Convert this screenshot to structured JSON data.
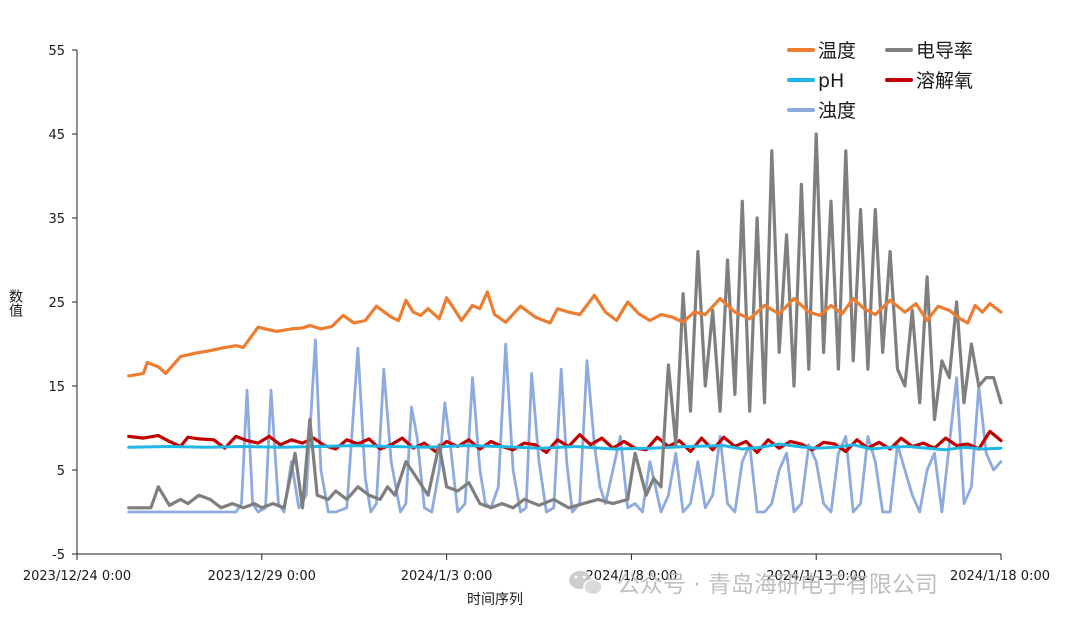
{
  "chart_data": {
    "type": "line",
    "title": "",
    "xlabel": "时间序列",
    "ylabel": "数值",
    "ylim": [
      -5,
      55
    ],
    "yticks": [
      -5,
      5,
      15,
      25,
      35,
      45,
      55
    ],
    "xlim": [
      0,
      25
    ],
    "xtick_labels": [
      "2023/12/24 0:00",
      "2023/12/29 0:00",
      "2024/1/3 0:00",
      "2024/1/8 0:00",
      "2024/1/13 0:00",
      "2024/1/18 0:00"
    ],
    "xtick_days": [
      0,
      5,
      10,
      15,
      20,
      25
    ],
    "x_unit": "days since 2023/12/24 0:00",
    "legend_position": "top-right",
    "series": [
      {
        "name": "温度",
        "color": "#ED7D31",
        "x": [
          1.4,
          1.8,
          1.9,
          2.2,
          2.4,
          2.8,
          3.2,
          3.6,
          3.9,
          4.3,
          4.5,
          4.9,
          5.1,
          5.4,
          5.8,
          6.1,
          6.3,
          6.6,
          6.9,
          7.2,
          7.5,
          7.8,
          8.1,
          8.5,
          8.7,
          8.9,
          9.1,
          9.3,
          9.5,
          9.8,
          10.0,
          10.2,
          10.4,
          10.7,
          10.9,
          11.1,
          11.3,
          11.6,
          12.0,
          12.4,
          12.8,
          13.0,
          13.3,
          13.6,
          14.0,
          14.3,
          14.6,
          14.9,
          15.2,
          15.5,
          15.8,
          16.1,
          16.4,
          16.7,
          17.0,
          17.4,
          17.8,
          18.2,
          18.6,
          19.0,
          19.4,
          19.8,
          20.1,
          20.4,
          20.7,
          21.0,
          21.3,
          21.6,
          22.0,
          22.4,
          22.7,
          23.0,
          23.3,
          23.6,
          23.9,
          24.1,
          24.3,
          24.5,
          24.7,
          25.0
        ],
        "values": [
          16.2,
          16.5,
          17.8,
          17.3,
          16.5,
          18.5,
          18.9,
          19.2,
          19.5,
          19.8,
          19.6,
          22.0,
          21.8,
          21.5,
          21.8,
          21.9,
          22.2,
          21.8,
          22.1,
          23.4,
          22.5,
          22.8,
          24.5,
          23.2,
          22.8,
          25.2,
          23.8,
          23.4,
          24.2,
          23.0,
          25.5,
          24.2,
          22.8,
          24.6,
          24.2,
          26.2,
          23.5,
          22.6,
          24.5,
          23.2,
          22.5,
          24.2,
          23.8,
          23.5,
          25.8,
          23.8,
          22.8,
          25.0,
          23.6,
          22.8,
          23.5,
          23.2,
          22.6,
          23.8,
          23.5,
          25.4,
          23.8,
          23.0,
          24.6,
          23.6,
          25.4,
          23.8,
          23.4,
          24.6,
          23.6,
          25.4,
          24.2,
          23.5,
          25.2,
          23.8,
          24.8,
          22.8,
          24.5,
          24.0,
          23.0,
          22.5,
          24.6,
          23.8,
          24.8,
          23.8
        ]
      },
      {
        "name": "pH",
        "color": "#1FB8E6",
        "x": [
          1.4,
          2.5,
          3.5,
          4.5,
          5.5,
          6.5,
          7.5,
          8.5,
          9.5,
          10.5,
          11.5,
          12.5,
          13.5,
          14.5,
          15.5,
          16.5,
          17.5,
          18.0,
          18.5,
          19.0,
          19.5,
          20.0,
          20.5,
          21.0,
          21.5,
          22.0,
          22.5,
          23.0,
          23.5,
          24.0,
          24.5,
          25.0
        ],
        "values": [
          7.7,
          7.8,
          7.7,
          7.8,
          7.7,
          7.8,
          7.9,
          7.8,
          7.7,
          7.9,
          7.8,
          7.6,
          7.8,
          7.5,
          7.6,
          7.8,
          7.9,
          7.5,
          7.7,
          8.1,
          7.8,
          7.6,
          7.7,
          8.0,
          7.5,
          7.7,
          7.8,
          7.6,
          7.4,
          7.7,
          7.5,
          7.6
        ]
      },
      {
        "name": "浊度",
        "color": "#8FAADC",
        "x": [
          1.4,
          4.3,
          4.45,
          4.6,
          4.75,
          4.9,
          5.1,
          5.25,
          5.45,
          5.6,
          5.8,
          6.0,
          6.2,
          6.45,
          6.6,
          6.8,
          7.0,
          7.3,
          7.6,
          7.8,
          7.95,
          8.1,
          8.3,
          8.5,
          8.75,
          8.9,
          9.05,
          9.2,
          9.4,
          9.6,
          9.8,
          9.95,
          10.1,
          10.3,
          10.5,
          10.7,
          10.9,
          11.05,
          11.2,
          11.4,
          11.6,
          11.8,
          12.0,
          12.15,
          12.3,
          12.5,
          12.7,
          12.9,
          13.1,
          13.25,
          13.4,
          13.6,
          13.8,
          14.0,
          14.15,
          14.3,
          14.5,
          14.7,
          14.9,
          15.1,
          15.3,
          15.5,
          15.8,
          16.0,
          16.2,
          16.4,
          16.6,
          16.8,
          17.0,
          17.2,
          17.4,
          17.6,
          17.8,
          18.0,
          18.2,
          18.4,
          18.6,
          18.8,
          19.0,
          19.2,
          19.4,
          19.6,
          19.8,
          20.0,
          20.2,
          20.4,
          20.6,
          20.8,
          21.0,
          21.2,
          21.4,
          21.6,
          21.8,
          22.0,
          22.2,
          22.4,
          22.6,
          22.8,
          23.0,
          23.2,
          23.4,
          23.6,
          23.8,
          24.0,
          24.2,
          24.4,
          24.6,
          24.8,
          25.0
        ],
        "values": [
          0,
          0,
          1,
          14.5,
          1,
          0,
          0.5,
          14.5,
          1,
          0,
          6,
          0.5,
          2,
          20.5,
          5,
          0,
          0,
          0.5,
          19.5,
          4,
          0,
          1,
          17,
          6,
          0,
          1,
          12.5,
          9,
          0.5,
          0,
          5,
          13,
          8,
          0,
          1,
          16,
          5,
          1,
          0.5,
          3,
          20,
          5,
          0,
          0.5,
          16.5,
          6,
          0,
          0.5,
          17,
          6,
          0,
          1,
          18,
          8,
          3,
          1,
          5,
          9,
          0.5,
          1,
          0,
          6,
          0,
          2,
          7,
          0,
          1,
          6,
          0.5,
          2,
          9,
          1,
          0,
          6,
          8,
          0,
          0,
          1,
          5,
          7,
          0,
          1,
          8,
          6,
          1,
          0,
          7,
          9,
          0,
          1,
          9,
          6,
          0,
          0,
          8,
          5,
          2,
          0,
          5,
          7,
          0,
          8,
          16,
          1,
          3,
          15,
          7,
          5,
          6
        ]
      },
      {
        "name": "电导率",
        "color": "#7F7F7F",
        "x": [
          1.4,
          2.0,
          2.2,
          2.5,
          2.8,
          3.0,
          3.3,
          3.6,
          3.9,
          4.2,
          4.5,
          4.8,
          5.0,
          5.3,
          5.6,
          5.9,
          6.1,
          6.3,
          6.5,
          6.8,
          7.0,
          7.3,
          7.6,
          7.9,
          8.2,
          8.4,
          8.6,
          8.9,
          9.2,
          9.5,
          9.8,
          10.0,
          10.3,
          10.6,
          10.9,
          11.2,
          11.5,
          11.8,
          12.1,
          12.5,
          12.9,
          13.3,
          13.7,
          14.1,
          14.5,
          14.9,
          15.1,
          15.4,
          15.6,
          15.8,
          16.0,
          16.2,
          16.4,
          16.6,
          16.8,
          17.0,
          17.2,
          17.4,
          17.6,
          17.8,
          18.0,
          18.2,
          18.4,
          18.6,
          18.8,
          19.0,
          19.2,
          19.4,
          19.6,
          19.8,
          20.0,
          20.2,
          20.4,
          20.6,
          20.8,
          21.0,
          21.2,
          21.4,
          21.6,
          21.8,
          22.0,
          22.2,
          22.4,
          22.6,
          22.8,
          23.0,
          23.2,
          23.4,
          23.6,
          23.8,
          24.0,
          24.2,
          24.4,
          24.6,
          24.8,
          25.0
        ],
        "values": [
          0.5,
          0.5,
          3,
          0.8,
          1.5,
          1,
          2,
          1.5,
          0.5,
          1,
          0.5,
          1,
          0.5,
          1,
          0.5,
          7,
          0.5,
          11,
          2,
          1.5,
          2.5,
          1.5,
          3,
          2,
          1.5,
          3,
          2,
          6,
          4,
          2,
          8,
          3,
          2.5,
          3.5,
          1,
          0.5,
          1,
          0.5,
          1.5,
          0.8,
          1.5,
          0.5,
          1,
          1.5,
          1,
          1.5,
          7,
          2,
          4,
          3,
          17.5,
          8,
          26,
          12,
          31,
          15,
          24,
          12,
          30,
          14,
          37,
          12,
          35,
          13,
          43,
          19,
          33,
          15,
          39,
          17,
          45,
          19,
          37,
          17,
          43,
          18,
          36,
          17,
          36,
          19,
          31,
          17,
          15,
          24,
          13,
          28,
          11,
          18,
          16,
          25,
          13,
          20,
          15,
          16,
          16,
          13
        ]
      },
      {
        "name": "溶解氧",
        "color": "#C00000",
        "x": [
          1.4,
          1.8,
          2.2,
          2.5,
          2.8,
          3.0,
          3.3,
          3.7,
          4.0,
          4.3,
          4.6,
          4.9,
          5.2,
          5.5,
          5.8,
          6.1,
          6.4,
          6.7,
          7.0,
          7.3,
          7.6,
          7.9,
          8.2,
          8.5,
          8.8,
          9.1,
          9.4,
          9.7,
          10.0,
          10.3,
          10.6,
          10.9,
          11.2,
          11.5,
          11.8,
          12.1,
          12.4,
          12.7,
          13.0,
          13.3,
          13.6,
          13.9,
          14.2,
          14.5,
          14.8,
          15.1,
          15.4,
          15.7,
          16.0,
          16.3,
          16.6,
          16.9,
          17.2,
          17.5,
          17.8,
          18.1,
          18.4,
          18.7,
          19.0,
          19.3,
          19.6,
          19.9,
          20.2,
          20.5,
          20.8,
          21.1,
          21.4,
          21.7,
          22.0,
          22.3,
          22.6,
          22.9,
          23.2,
          23.5,
          23.8,
          24.1,
          24.4,
          24.7,
          25.0
        ],
        "values": [
          9,
          8.8,
          9.1,
          8.4,
          7.8,
          8.9,
          8.7,
          8.6,
          7.6,
          9,
          8.5,
          8.2,
          9,
          8,
          8.6,
          8.2,
          8.8,
          7.9,
          7.5,
          8.6,
          8.1,
          8.7,
          7.5,
          8,
          8.8,
          7.6,
          8.2,
          7.2,
          8.4,
          7.8,
          8.6,
          7.5,
          8.4,
          7.8,
          7.4,
          8.2,
          8,
          7.1,
          8.6,
          7.8,
          9.2,
          8,
          8.8,
          7.6,
          8.4,
          7.6,
          7.4,
          8.9,
          7.8,
          8.5,
          7.2,
          8.8,
          7.4,
          8.9,
          7.8,
          8.4,
          7.1,
          8.6,
          7.6,
          8.4,
          8.1,
          7.4,
          8.3,
          8.1,
          7.2,
          8.6,
          7.6,
          8.3,
          7.5,
          8.8,
          7.8,
          8.2,
          7.6,
          8.8,
          7.9,
          8.1,
          7.5,
          9.6,
          8.5
        ]
      }
    ]
  },
  "watermark": {
    "text": "公众号 · 青岛海研电子有限公司",
    "icon": "wechat-icon"
  }
}
